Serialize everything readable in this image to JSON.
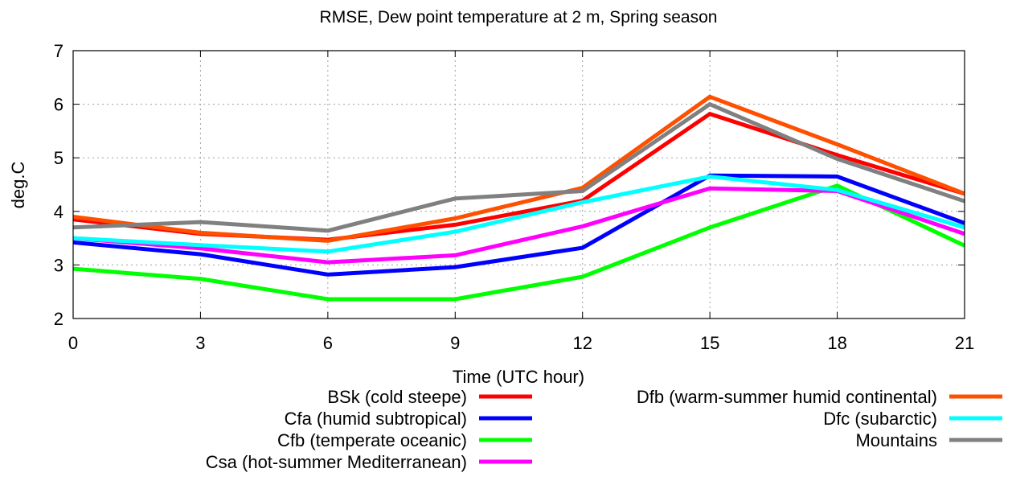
{
  "chart_data": {
    "type": "line",
    "title": "RMSE, Dew point temperature at 2 m, Spring season",
    "xlabel": "Time (UTC hour)",
    "ylabel": "deg.C",
    "x": [
      0,
      3,
      6,
      9,
      12,
      15,
      18,
      21
    ],
    "xlim": [
      0,
      21
    ],
    "ylim": [
      2,
      7
    ],
    "xticks": [
      "0",
      "3",
      "6",
      "9",
      "12",
      "15",
      "18",
      "21"
    ],
    "yticks": [
      "2",
      "3",
      "4",
      "5",
      "6",
      "7"
    ],
    "grid": true,
    "legend_position": "bottom",
    "series": [
      {
        "name": "BSk (cold steepe)",
        "color": "#ff0000",
        "values": [
          3.85,
          3.58,
          3.47,
          3.75,
          4.2,
          5.82,
          5.05,
          4.33
        ]
      },
      {
        "name": "Cfa (humid subtropical)",
        "color": "#0000ff",
        "values": [
          3.42,
          3.2,
          2.82,
          2.96,
          3.32,
          4.67,
          4.65,
          3.78
        ]
      },
      {
        "name": "Cfb (temperate oceanic)",
        "color": "#00ff00",
        "values": [
          2.93,
          2.74,
          2.36,
          2.36,
          2.78,
          3.7,
          4.48,
          3.36
        ]
      },
      {
        "name": "Csa (hot-summer Mediterranean)",
        "color": "#ff00ff",
        "values": [
          3.5,
          3.31,
          3.05,
          3.18,
          3.72,
          4.43,
          4.38,
          3.58
        ]
      },
      {
        "name": "Dfb (warm-summer humid continental)",
        "color": "#ff5000",
        "values": [
          3.9,
          3.6,
          3.45,
          3.87,
          4.44,
          6.14,
          5.25,
          4.33
        ]
      },
      {
        "name": "Dfc (subarctic)",
        "color": "#00ffff",
        "values": [
          3.5,
          3.37,
          3.25,
          3.62,
          4.17,
          4.65,
          4.4,
          3.7
        ]
      },
      {
        "name": "Mountains",
        "color": "#808080",
        "values": [
          3.7,
          3.8,
          3.64,
          4.24,
          4.38,
          6.0,
          4.98,
          4.19
        ]
      }
    ]
  }
}
